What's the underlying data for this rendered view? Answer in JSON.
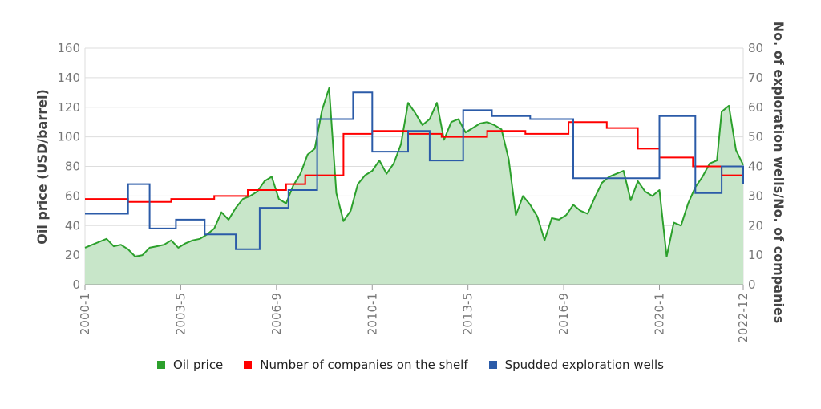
{
  "colors": {
    "oil": "#2ca02c",
    "oil_fill": "#c8e6c9",
    "companies": "#ff0000",
    "wells": "#2b5ba8",
    "grid": "#dddddd",
    "axis": "#999999"
  },
  "legend": {
    "oil": "Oil price",
    "companies": "Number of companies on the shelf",
    "wells": "Spudded exploration wells"
  },
  "chart_data": {
    "type": "line",
    "x_start": "2000-1",
    "x_end": "2022-12",
    "xticks": [
      "2000-1",
      "2003-5",
      "2006-9",
      "2010-1",
      "2013-5",
      "2016-9",
      "2020-1",
      "2022-12"
    ],
    "ylabel_left": "Oil price (USD/barrel)",
    "ylabel_right": "No. of exploration wells/No. of companies",
    "ylim_left": [
      0,
      160
    ],
    "ylim_right": [
      0,
      80
    ],
    "yticks_left": [
      0,
      20,
      40,
      60,
      80,
      100,
      120,
      140,
      160
    ],
    "yticks_right": [
      0,
      10,
      20,
      30,
      40,
      50,
      60,
      70,
      80
    ],
    "grid": true,
    "legend_position": "bottom",
    "series": [
      {
        "key": "oil",
        "name": "Oil price",
        "axis": "left",
        "style": "area",
        "x": [
          "2000-01",
          "2000-04",
          "2000-07",
          "2000-10",
          "2001-01",
          "2001-04",
          "2001-07",
          "2001-10",
          "2002-01",
          "2002-04",
          "2002-07",
          "2002-10",
          "2003-01",
          "2003-04",
          "2003-07",
          "2003-10",
          "2004-01",
          "2004-04",
          "2004-07",
          "2004-10",
          "2005-01",
          "2005-04",
          "2005-07",
          "2005-10",
          "2006-01",
          "2006-04",
          "2006-07",
          "2006-10",
          "2007-01",
          "2007-04",
          "2007-07",
          "2007-10",
          "2008-01",
          "2008-04",
          "2008-07",
          "2008-10",
          "2009-01",
          "2009-04",
          "2009-07",
          "2009-10",
          "2010-01",
          "2010-04",
          "2010-07",
          "2010-10",
          "2011-01",
          "2011-04",
          "2011-07",
          "2011-10",
          "2012-01",
          "2012-04",
          "2012-07",
          "2012-10",
          "2013-01",
          "2013-04",
          "2013-07",
          "2013-10",
          "2014-01",
          "2014-04",
          "2014-07",
          "2014-10",
          "2015-01",
          "2015-04",
          "2015-07",
          "2015-10",
          "2016-01",
          "2016-04",
          "2016-07",
          "2016-10",
          "2017-01",
          "2017-04",
          "2017-07",
          "2017-10",
          "2018-01",
          "2018-04",
          "2018-07",
          "2018-10",
          "2019-01",
          "2019-04",
          "2019-07",
          "2019-10",
          "2020-01",
          "2020-04",
          "2020-07",
          "2020-10",
          "2021-01",
          "2021-04",
          "2021-07",
          "2021-10",
          "2022-01",
          "2022-03",
          "2022-06",
          "2022-09",
          "2022-12"
        ],
        "values": [
          25,
          27,
          29,
          31,
          26,
          27,
          24,
          19,
          20,
          25,
          26,
          27,
          30,
          25,
          28,
          30,
          31,
          34,
          38,
          49,
          44,
          52,
          58,
          60,
          63,
          70,
          73,
          58,
          55,
          67,
          75,
          88,
          92,
          118,
          133,
          62,
          43,
          50,
          68,
          74,
          77,
          84,
          75,
          82,
          95,
          123,
          116,
          108,
          112,
          123,
          98,
          110,
          112,
          103,
          106,
          109,
          110,
          108,
          105,
          85,
          47,
          60,
          54,
          46,
          30,
          45,
          44,
          47,
          54,
          50,
          48,
          59,
          69,
          73,
          75,
          77,
          57,
          70,
          63,
          60,
          64,
          19,
          42,
          40,
          55,
          66,
          73,
          82,
          84,
          117,
          121,
          91,
          81
        ]
      },
      {
        "key": "companies",
        "name": "Number of companies on the shelf",
        "axis": "right",
        "style": "step",
        "x": [
          "2000-01",
          "2001-07",
          "2003-01",
          "2004-07",
          "2005-09",
          "2007-01",
          "2007-09",
          "2009-01",
          "2010-01",
          "2011-04",
          "2012-06",
          "2014-01",
          "2015-05",
          "2016-11",
          "2018-03",
          "2019-04",
          "2020-01",
          "2021-03",
          "2022-03",
          "2022-12"
        ],
        "values": [
          29,
          28,
          29,
          30,
          32,
          34,
          37,
          51,
          52,
          51,
          50,
          52,
          51,
          55,
          53,
          46,
          43,
          40,
          37,
          36
        ]
      },
      {
        "key": "wells",
        "name": "Spudded exploration wells",
        "axis": "right",
        "style": "step",
        "x": [
          "2000-01",
          "2001-07",
          "2002-04",
          "2003-03",
          "2004-03",
          "2005-04",
          "2006-02",
          "2007-02",
          "2008-02",
          "2009-05",
          "2010-01",
          "2011-04",
          "2012-01",
          "2013-03",
          "2014-03",
          "2015-07",
          "2017-01",
          "2018-08",
          "2020-01",
          "2021-04",
          "2022-03",
          "2022-12"
        ],
        "values": [
          24,
          34,
          19,
          22,
          17,
          12,
          26,
          32,
          56,
          65,
          45,
          52,
          42,
          59,
          57,
          56,
          36,
          36,
          57,
          31,
          40,
          34
        ]
      }
    ]
  }
}
